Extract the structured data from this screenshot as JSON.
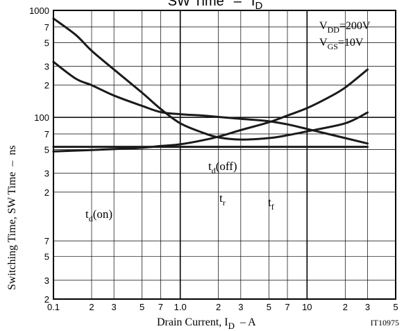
{
  "chart_data": {
    "type": "line",
    "title": {
      "main": "SW Time",
      "sep": "–",
      "var": "I",
      "var_sub": "D"
    },
    "xlabel": {
      "main": "Drain Current, I",
      "sub": "D",
      "suffix": "– A"
    },
    "ylabel": "Switching Time, SW Time  –  ns",
    "x_scale": "log",
    "y_scale": "log",
    "xlim": [
      0.1,
      50
    ],
    "ylim": [
      2,
      1000
    ],
    "x_major_ticks": [
      {
        "value": 0.1,
        "label": "0.1"
      },
      {
        "value": 1,
        "label": "1.0"
      },
      {
        "value": 10,
        "label": "10"
      }
    ],
    "x_minor_ticks": [
      {
        "value": 0.2,
        "label": "2"
      },
      {
        "value": 0.3,
        "label": "3"
      },
      {
        "value": 0.5,
        "label": "5"
      },
      {
        "value": 0.7,
        "label": "7"
      },
      {
        "value": 2,
        "label": "2"
      },
      {
        "value": 3,
        "label": "3"
      },
      {
        "value": 5,
        "label": "5"
      },
      {
        "value": 7,
        "label": "7"
      },
      {
        "value": 20,
        "label": "2"
      },
      {
        "value": 30,
        "label": "3"
      },
      {
        "value": 50,
        "label": "5"
      }
    ],
    "y_major_ticks": [
      {
        "value": 100,
        "label": "100"
      },
      {
        "value": 1000,
        "label": "1000"
      }
    ],
    "y_minor_ticks": [
      {
        "value": 2,
        "label": "2"
      },
      {
        "value": 3,
        "label": "3"
      },
      {
        "value": 5,
        "label": "5"
      },
      {
        "value": 7,
        "label": "7"
      },
      {
        "value": 20,
        "label": "2"
      },
      {
        "value": 30,
        "label": "3"
      },
      {
        "value": 50,
        "label": "5"
      },
      {
        "value": 70,
        "label": "7"
      },
      {
        "value": 200,
        "label": "2"
      },
      {
        "value": 300,
        "label": "3"
      },
      {
        "value": 500,
        "label": "5"
      },
      {
        "value": 700,
        "label": "7"
      }
    ],
    "conditions": [
      {
        "main": "V",
        "sub": "DD",
        "rest": "=200V"
      },
      {
        "main": "V",
        "sub": "GS",
        "rest": "=10V"
      }
    ],
    "figure_code": "IT10975",
    "series": [
      {
        "name": "td(off)",
        "label_main": "t",
        "label_sub": "d",
        "label_rest": "(off)",
        "x": [
          0.1,
          0.15,
          0.2,
          0.3,
          0.5,
          0.7,
          1.0,
          1.5,
          2.0,
          3.0,
          5.0,
          7.0,
          10,
          20,
          30
        ],
        "y": [
          330,
          230,
          200,
          160,
          128,
          112,
          107,
          104,
          101,
          97,
          92,
          86,
          78,
          64,
          57
        ]
      },
      {
        "name": "tr",
        "label_main": "t",
        "label_sub": "r",
        "label_rest": "",
        "x": [
          0.1,
          0.15,
          0.2,
          0.3,
          0.5,
          0.7,
          1.0,
          1.5,
          2.0,
          3.0,
          5.0,
          7.0,
          10,
          20,
          30
        ],
        "y": [
          840,
          590,
          420,
          280,
          170,
          120,
          88,
          72,
          65,
          62,
          64,
          68,
          74,
          88,
          111
        ]
      },
      {
        "name": "tf",
        "label_main": "t",
        "label_sub": "f",
        "label_rest": "",
        "x": [
          0.1,
          0.2,
          0.3,
          0.5,
          0.7,
          1.0,
          1.5,
          2.0,
          3.0,
          5.0,
          7.0,
          10,
          15,
          20,
          30
        ],
        "y": [
          48,
          49.5,
          50.5,
          52,
          54,
          56,
          61,
          66,
          76,
          90,
          104,
          122,
          155,
          190,
          280
        ]
      },
      {
        "name": "td(on)",
        "label_main": "t",
        "label_sub": "d",
        "label_rest": "(on)",
        "x": [
          0.1,
          30
        ],
        "y": [
          53,
          53
        ]
      }
    ]
  }
}
